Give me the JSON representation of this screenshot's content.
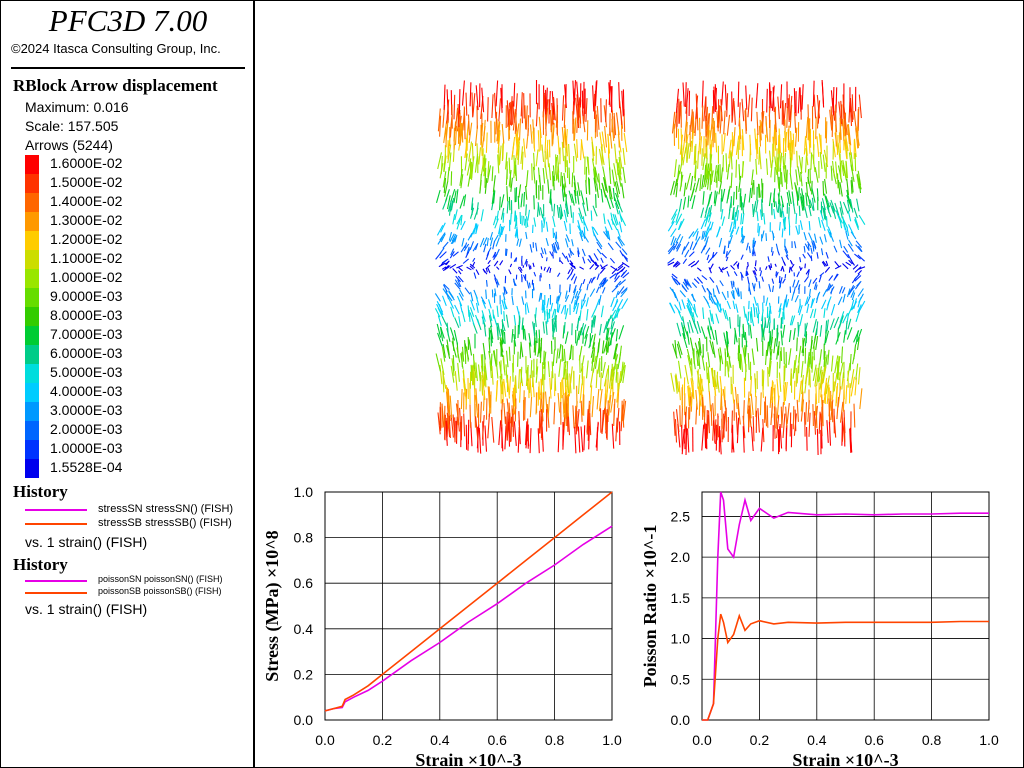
{
  "app": {
    "title": "PFC3D 7.00",
    "copyright": "©2024 Itasca Consulting Group, Inc."
  },
  "legend": {
    "plot_title": "RBlock Arrow displacement",
    "maximum": "Maximum: 0.016",
    "scale": "Scale: 157.505",
    "arrows": "Arrows (5244)",
    "colorbar": [
      {
        "label": "1.6000E-02",
        "color": "#ff0000"
      },
      {
        "label": "1.5000E-02",
        "color": "#ff3300"
      },
      {
        "label": "1.4000E-02",
        "color": "#ff6600"
      },
      {
        "label": "1.3000E-02",
        "color": "#ff9900"
      },
      {
        "label": "1.2000E-02",
        "color": "#ffcc00"
      },
      {
        "label": "1.1000E-02",
        "color": "#ccdd00"
      },
      {
        "label": "1.0000E-02",
        "color": "#99e600"
      },
      {
        "label": "9.0000E-03",
        "color": "#66dd00"
      },
      {
        "label": "8.0000E-03",
        "color": "#33cc00"
      },
      {
        "label": "7.0000E-03",
        "color": "#00cc33"
      },
      {
        "label": "6.0000E-03",
        "color": "#00cc88"
      },
      {
        "label": "5.0000E-03",
        "color": "#00dddd"
      },
      {
        "label": "4.0000E-03",
        "color": "#00ccff"
      },
      {
        "label": "3.0000E-03",
        "color": "#0099ff"
      },
      {
        "label": "2.0000E-03",
        "color": "#0066ff"
      },
      {
        "label": "1.0000E-03",
        "color": "#0033ff"
      },
      {
        "label": "1.5528E-04",
        "color": "#0000ee"
      }
    ],
    "history1": {
      "heading": "History",
      "items": [
        {
          "label": "stressSN stressSN() (FISH)",
          "color": "#e600e6"
        },
        {
          "label": "stressSB stressSB() (FISH)",
          "color": "#ff4400"
        }
      ],
      "vs": "vs. 1 strain() (FISH)"
    },
    "history2": {
      "heading": "History",
      "items": [
        {
          "label": "poissonSN poissonSN() (FISH)",
          "color": "#e600e6"
        },
        {
          "label": "poissonSB poissonSB() (FISH)",
          "color": "#ff4400"
        }
      ],
      "vs": "vs. 1 strain() (FISH)"
    }
  },
  "chart_data": [
    {
      "type": "line",
      "xlabel": "Strain ×10^-3",
      "ylabel": "Stress (MPa) ×10^8",
      "xlim": [
        0,
        1
      ],
      "ylim": [
        0,
        1
      ],
      "xticks": [
        "0.0",
        "0.2",
        "0.4",
        "0.6",
        "0.8",
        "1.0"
      ],
      "yticks": [
        "0.0",
        "0.2",
        "0.4",
        "0.6",
        "0.8",
        "1.0"
      ],
      "grid": true,
      "series": [
        {
          "name": "stressSN",
          "color": "#e600e6",
          "x": [
            0,
            0.03,
            0.06,
            0.07,
            0.1,
            0.15,
            0.2,
            0.3,
            0.4,
            0.5,
            0.6,
            0.7,
            0.8,
            0.9,
            1.0
          ],
          "y": [
            0.04,
            0.05,
            0.055,
            0.08,
            0.1,
            0.13,
            0.17,
            0.26,
            0.34,
            0.43,
            0.51,
            0.6,
            0.68,
            0.77,
            0.85
          ]
        },
        {
          "name": "stressSB",
          "color": "#ff4400",
          "x": [
            0,
            0.03,
            0.06,
            0.07,
            0.1,
            0.15,
            0.2,
            0.3,
            0.4,
            0.5,
            0.6,
            0.7,
            0.8,
            0.9,
            1.0
          ],
          "y": [
            0.04,
            0.05,
            0.06,
            0.09,
            0.11,
            0.15,
            0.2,
            0.3,
            0.4,
            0.5,
            0.6,
            0.7,
            0.8,
            0.9,
            1.0
          ]
        }
      ]
    },
    {
      "type": "line",
      "xlabel": "Strain ×10^-3",
      "ylabel": "Poisson Ratio ×10^-1",
      "xlim": [
        0,
        1
      ],
      "ylim": [
        0,
        2.8
      ],
      "xticks": [
        "0.0",
        "0.2",
        "0.4",
        "0.6",
        "0.8",
        "1.0"
      ],
      "yticks": [
        "0.0",
        "0.5",
        "1.0",
        "1.5",
        "2.0",
        "2.5"
      ],
      "grid": true,
      "series": [
        {
          "name": "poissonSN",
          "color": "#e600e6",
          "x": [
            0,
            0.02,
            0.04,
            0.055,
            0.065,
            0.075,
            0.09,
            0.11,
            0.13,
            0.15,
            0.17,
            0.2,
            0.25,
            0.3,
            0.4,
            0.5,
            0.6,
            0.7,
            0.8,
            0.9,
            1.0
          ],
          "y": [
            0,
            0,
            0.2,
            2.0,
            2.8,
            2.7,
            2.1,
            2.0,
            2.4,
            2.7,
            2.45,
            2.6,
            2.48,
            2.55,
            2.52,
            2.53,
            2.52,
            2.53,
            2.53,
            2.54,
            2.54
          ]
        },
        {
          "name": "poissonSB",
          "color": "#ff4400",
          "x": [
            0,
            0.02,
            0.04,
            0.055,
            0.065,
            0.075,
            0.09,
            0.11,
            0.13,
            0.15,
            0.17,
            0.2,
            0.25,
            0.3,
            0.4,
            0.5,
            0.6,
            0.7,
            0.8,
            0.9,
            1.0
          ],
          "y": [
            0,
            0,
            0.2,
            1.0,
            1.3,
            1.2,
            0.95,
            1.05,
            1.28,
            1.1,
            1.18,
            1.22,
            1.18,
            1.2,
            1.19,
            1.2,
            1.2,
            1.2,
            1.2,
            1.21,
            1.21
          ]
        }
      ]
    }
  ]
}
